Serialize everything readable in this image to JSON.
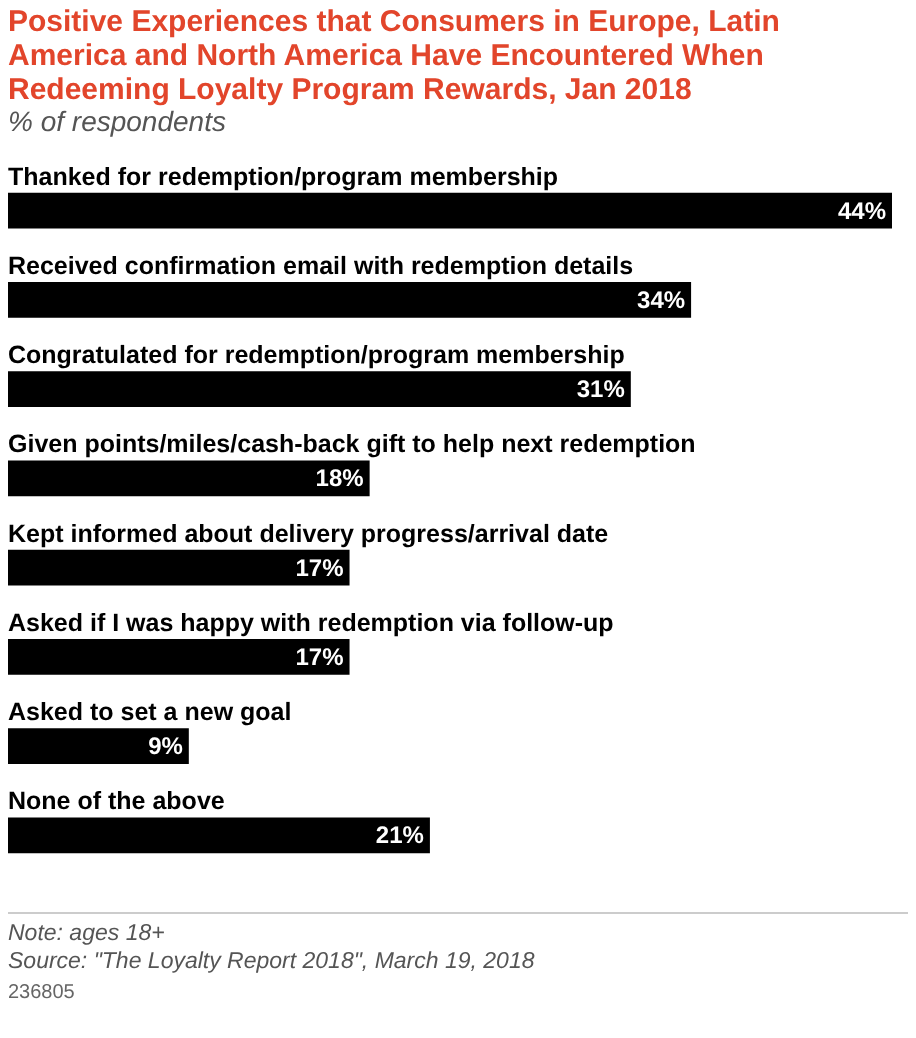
{
  "chart_data": {
    "type": "bar",
    "orientation": "horizontal",
    "title": "Positive Experiences that Consumers in Europe, Latin America and North America Have Encountered When Redeeming Loyalty Program Rewards, Jan 2018",
    "subtitle": "% of respondents",
    "categories": [
      "Thanked for redemption/program membership",
      "Received confirmation email with redemption details",
      "Congratulated for redemption/program membership",
      "Given points/miles/cash-back gift to help next redemption",
      "Kept informed about delivery progress/arrival date",
      "Asked if I was happy with redemption via follow-up",
      "Asked to set a new goal",
      "None of the above"
    ],
    "values": [
      44,
      34,
      31,
      18,
      17,
      17,
      9,
      21
    ],
    "value_labels": [
      "44%",
      "34%",
      "31%",
      "18%",
      "17%",
      "17%",
      "9%",
      "21%"
    ],
    "color": "#000000",
    "annotations": [
      "Note: ages 18+",
      "Source: \"The Loyalty Report 2018\", March 19, 2018",
      "236805"
    ]
  }
}
